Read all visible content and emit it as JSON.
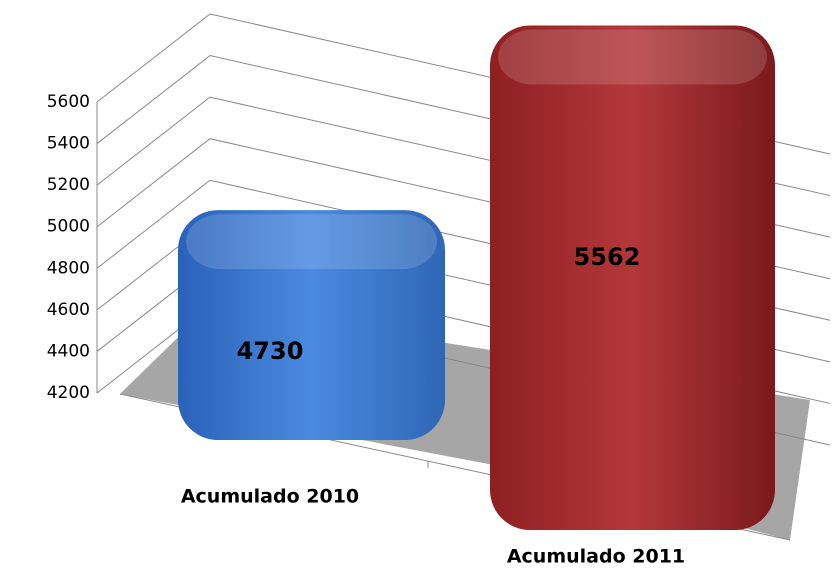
{
  "chart_data": {
    "type": "bar3d",
    "categories": [
      "Acumulado 2010",
      "Acumulado 2011"
    ],
    "values": [
      4730,
      5562
    ],
    "colors": [
      "#3a7bd5",
      "#a8292b"
    ],
    "ylim": [
      4200,
      5600
    ],
    "yticks": [
      4200,
      4400,
      4600,
      4800,
      5000,
      5200,
      5400,
      5600
    ],
    "grid": true
  }
}
